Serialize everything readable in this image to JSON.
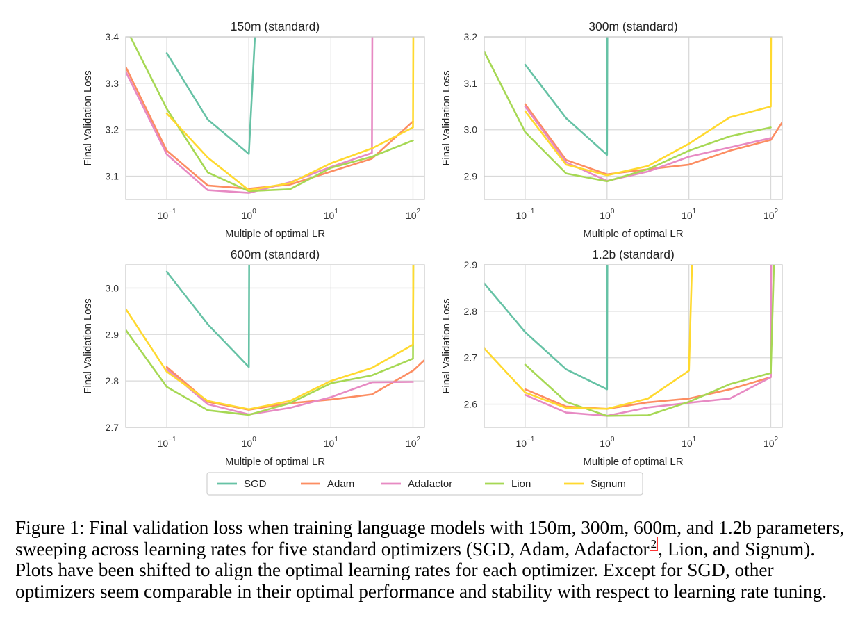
{
  "chart_data": {
    "type": "line",
    "x_label": "Multiple of optimal LR",
    "y_label": "Final Validation Loss",
    "x_scale": "log",
    "xlim": [
      0.0316,
      138
    ],
    "x_ticks": [
      {
        "value": 0.1,
        "base": "10",
        "exp": "−1"
      },
      {
        "value": 1,
        "base": "10",
        "exp": "0"
      },
      {
        "value": 10,
        "base": "10",
        "exp": "1"
      },
      {
        "value": 100,
        "base": "10",
        "exp": "2"
      }
    ],
    "grid": true,
    "legend": {
      "position": "bottom-center",
      "entries": [
        {
          "name": "SGD",
          "color": "#66c2a5"
        },
        {
          "name": "Adam",
          "color": "#fc8d62"
        },
        {
          "name": "Adafactor",
          "color": "#e78ac3"
        },
        {
          "name": "Lion",
          "color": "#a6d854"
        },
        {
          "name": "Signum",
          "color": "#ffd92f"
        }
      ]
    },
    "panels": [
      {
        "title": "150m (standard)",
        "ylim": [
          3.05,
          3.4
        ],
        "y_ticks": [
          {
            "value": 3.1,
            "label": "3.1"
          },
          {
            "value": 3.2,
            "label": "3.2"
          },
          {
            "value": 3.3,
            "label": "3.3"
          },
          {
            "value": 3.4,
            "label": "3.4"
          }
        ],
        "series": [
          {
            "name": "SGD",
            "x": [
              0.1,
              0.316,
              1,
              1.2
            ],
            "y": [
              3.365,
              3.222,
              3.148,
              3.42
            ]
          },
          {
            "name": "Adam",
            "x": [
              0.0316,
              0.1,
              0.316,
              1,
              3.16,
              10,
              31.6,
              100
            ],
            "y": [
              3.335,
              3.155,
              3.08,
              3.073,
              3.082,
              3.11,
              3.138,
              3.218
            ]
          },
          {
            "name": "Adafactor",
            "x": [
              0.0316,
              0.1,
              0.316,
              1,
              3.16,
              10,
              31.6,
              32
            ],
            "y": [
              3.325,
              3.147,
              3.07,
              3.064,
              3.087,
              3.12,
              3.15,
              3.42
            ]
          },
          {
            "name": "Lion",
            "x": [
              0.0316,
              0.1,
              0.316,
              1,
              3.16,
              10,
              31.6,
              100
            ],
            "y": [
              3.42,
              3.245,
              3.108,
              3.068,
              3.072,
              3.118,
              3.142,
              3.177
            ]
          },
          {
            "name": "Signum",
            "x": [
              0.1,
              0.316,
              1,
              3.16,
              10,
              31.6,
              100,
              101
            ],
            "y": [
              3.235,
              3.14,
              3.07,
              3.085,
              3.128,
              3.16,
              3.205,
              3.42
            ]
          }
        ]
      },
      {
        "title": "300m (standard)",
        "ylim": [
          2.85,
          3.2
        ],
        "y_ticks": [
          {
            "value": 2.9,
            "label": "2.9"
          },
          {
            "value": 3.0,
            "label": "3.0"
          },
          {
            "value": 3.1,
            "label": "3.1"
          },
          {
            "value": 3.2,
            "label": "3.2"
          }
        ],
        "series": [
          {
            "name": "SGD",
            "x": [
              0.1,
              0.316,
              1,
              1.01
            ],
            "y": [
              3.14,
              3.025,
              2.946,
              3.22
            ]
          },
          {
            "name": "Adam",
            "x": [
              0.1,
              0.316,
              1,
              3.16,
              10,
              31.6,
              100,
              138
            ],
            "y": [
              3.055,
              2.935,
              2.904,
              2.915,
              2.925,
              2.955,
              2.978,
              3.016
            ]
          },
          {
            "name": "Adafactor",
            "x": [
              0.1,
              0.316,
              1,
              3.16,
              10,
              31.6,
              100
            ],
            "y": [
              3.05,
              2.93,
              2.89,
              2.91,
              2.942,
              2.962,
              2.982
            ]
          },
          {
            "name": "Lion",
            "x": [
              0.0316,
              0.1,
              0.316,
              1,
              3.16,
              10,
              31.6,
              100
            ],
            "y": [
              3.168,
              2.995,
              2.906,
              2.889,
              2.915,
              2.955,
              2.986,
              3.005
            ]
          },
          {
            "name": "Signum",
            "x": [
              0.1,
              0.316,
              1,
              3.16,
              10,
              31.6,
              100,
              101
            ],
            "y": [
              3.04,
              2.925,
              2.902,
              2.922,
              2.97,
              3.027,
              3.05,
              3.22
            ]
          }
        ]
      },
      {
        "title": "600m (standard)",
        "ylim": [
          2.7,
          3.05
        ],
        "y_ticks": [
          {
            "value": 2.7,
            "label": "2.7"
          },
          {
            "value": 2.8,
            "label": "2.8"
          },
          {
            "value": 2.9,
            "label": "2.9"
          },
          {
            "value": 3.0,
            "label": "3.0"
          }
        ],
        "series": [
          {
            "name": "SGD",
            "x": [
              0.1,
              0.316,
              1,
              1.01
            ],
            "y": [
              3.035,
              2.922,
              2.83,
              3.07
            ]
          },
          {
            "name": "Adam",
            "x": [
              0.1,
              0.316,
              1,
              3.16,
              10,
              31.6,
              100,
              138
            ],
            "y": [
              2.83,
              2.755,
              2.738,
              2.752,
              2.76,
              2.771,
              2.822,
              2.845
            ]
          },
          {
            "name": "Adafactor",
            "x": [
              0.1,
              0.316,
              1,
              3.16,
              10,
              31.6,
              100
            ],
            "y": [
              2.825,
              2.75,
              2.728,
              2.742,
              2.765,
              2.797,
              2.798
            ]
          },
          {
            "name": "Lion",
            "x": [
              0.0316,
              0.1,
              0.316,
              1,
              3.16,
              10,
              31.6,
              100,
              101
            ],
            "y": [
              2.91,
              2.787,
              2.737,
              2.727,
              2.752,
              2.795,
              2.812,
              2.848,
              3.07
            ]
          },
          {
            "name": "Signum",
            "x": [
              0.0316,
              0.1,
              0.316,
              1,
              3.16,
              10,
              31.6,
              100,
              101
            ],
            "y": [
              2.955,
              2.82,
              2.757,
              2.739,
              2.757,
              2.8,
              2.828,
              2.878,
              3.07
            ]
          }
        ]
      },
      {
        "title": "1.2b (standard)",
        "ylim": [
          2.55,
          2.9
        ],
        "y_ticks": [
          {
            "value": 2.6,
            "label": "2.6"
          },
          {
            "value": 2.7,
            "label": "2.7"
          },
          {
            "value": 2.8,
            "label": "2.8"
          },
          {
            "value": 2.9,
            "label": "2.9"
          }
        ],
        "series": [
          {
            "name": "SGD",
            "x": [
              0.0316,
              0.1,
              0.316,
              1,
              1.01
            ],
            "y": [
              2.86,
              2.755,
              2.675,
              2.632,
              2.92
            ]
          },
          {
            "name": "Adam",
            "x": [
              0.1,
              0.316,
              1,
              3.16,
              10,
              31.6,
              100,
              101
            ],
            "y": [
              2.632,
              2.595,
              2.59,
              2.604,
              2.612,
              2.632,
              2.658,
              2.92
            ]
          },
          {
            "name": "Adafactor",
            "x": [
              0.1,
              0.316,
              1,
              3.16,
              10,
              31.6,
              100,
              101
            ],
            "y": [
              2.62,
              2.582,
              2.575,
              2.593,
              2.603,
              2.612,
              2.658,
              2.92
            ]
          },
          {
            "name": "Lion",
            "x": [
              0.1,
              0.316,
              1,
              3.16,
              10,
              31.6,
              100,
              110
            ],
            "y": [
              2.685,
              2.605,
              2.575,
              2.576,
              2.605,
              2.643,
              2.667,
              2.92
            ]
          },
          {
            "name": "Signum",
            "x": [
              0.0316,
              0.1,
              0.316,
              1,
              3.16,
              10,
              11
            ],
            "y": [
              2.72,
              2.625,
              2.592,
              2.59,
              2.612,
              2.672,
              2.92
            ]
          }
        ]
      }
    ]
  },
  "caption": {
    "text": "Figure 1: Final validation loss when training language models with 150m, 300m, 600m, and 1.2b parameters, sweeping across learning rates for five standard optimizers (SGD, Adam, Adafactor",
    "footnote_ref": "2",
    "text_after": ", Lion, and Signum). Plots have been shifted to align the optimal learning rates for each optimizer. Except for SGD, other optimizers seem comparable in their optimal performance and stability with respect to learning rate tuning."
  }
}
